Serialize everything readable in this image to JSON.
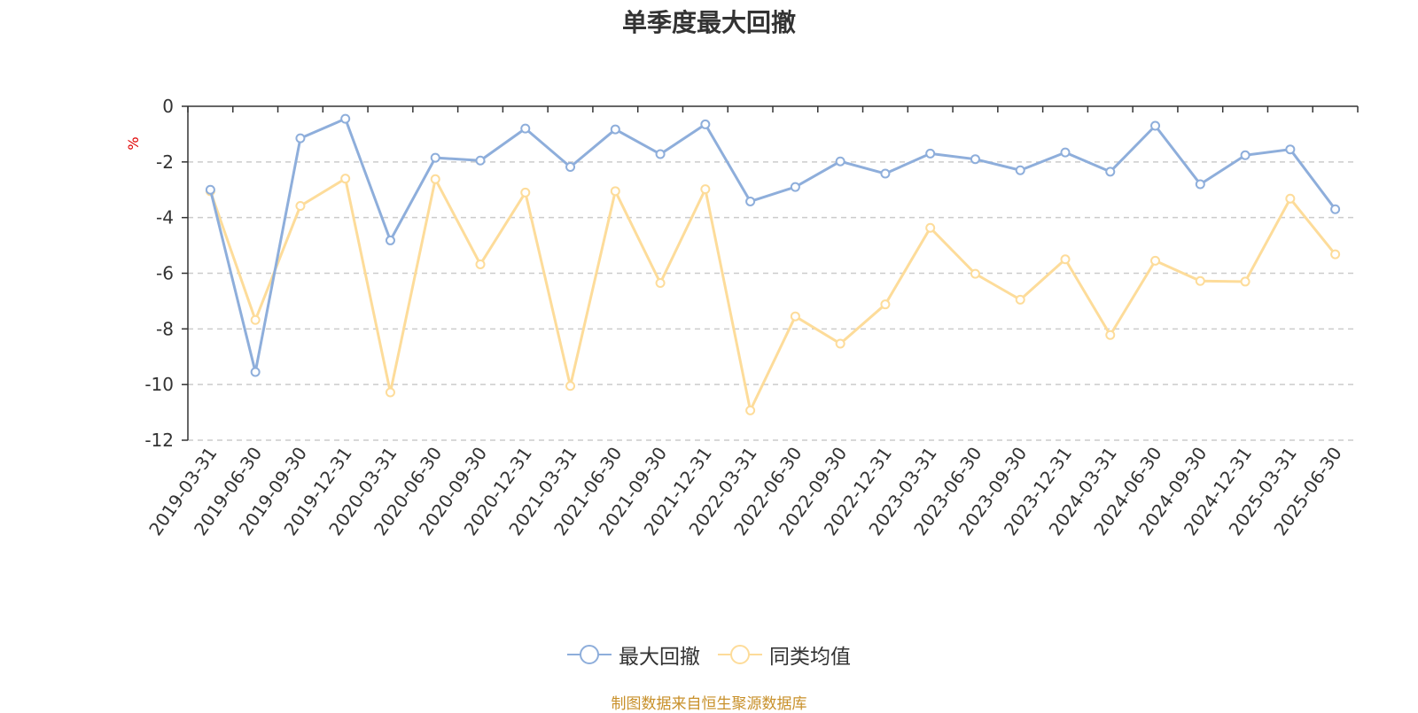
{
  "chart_data": {
    "type": "line",
    "title": "单季度最大回撤",
    "ylabel": "%",
    "ylim": [
      -12,
      0
    ],
    "yticks": [
      0,
      -2,
      -4,
      -6,
      -8,
      -10,
      -12
    ],
    "grid": true,
    "legend_position": "bottom",
    "categories": [
      "2019-03-31",
      "2019-06-30",
      "2019-09-30",
      "2019-12-31",
      "2020-03-31",
      "2020-06-30",
      "2020-09-30",
      "2020-12-31",
      "2021-03-31",
      "2021-06-30",
      "2021-09-30",
      "2021-12-31",
      "2022-03-31",
      "2022-06-30",
      "2022-09-30",
      "2022-12-31",
      "2023-03-31",
      "2023-06-30",
      "2023-09-30",
      "2023-12-31",
      "2024-03-31",
      "2024-06-30",
      "2024-09-30",
      "2024-12-31",
      "2025-03-31",
      "2025-06-30"
    ],
    "series": [
      {
        "name": "最大回撤",
        "color": "#8eaedb",
        "values": [
          -3.0,
          -9.55,
          -1.15,
          -0.45,
          -4.82,
          -1.85,
          -1.95,
          -0.8,
          -2.18,
          -0.83,
          -1.72,
          -0.65,
          -3.42,
          -2.9,
          -1.98,
          -2.42,
          -1.7,
          -1.9,
          -2.3,
          -1.66,
          -2.35,
          -0.7,
          -2.8,
          -1.76,
          -1.55,
          -3.7
        ]
      },
      {
        "name": "同类均值",
        "color": "#fddc9a",
        "values": [
          -3.05,
          -7.68,
          -3.58,
          -2.6,
          -10.28,
          -2.62,
          -5.68,
          -3.1,
          -10.05,
          -3.05,
          -6.35,
          -2.98,
          -10.93,
          -7.55,
          -8.53,
          -7.12,
          -4.37,
          -6.02,
          -6.95,
          -5.5,
          -8.22,
          -5.55,
          -6.28,
          -6.3,
          -3.32,
          -5.32
        ]
      }
    ]
  },
  "source_note": "制图数据来自恒生聚源数据库"
}
